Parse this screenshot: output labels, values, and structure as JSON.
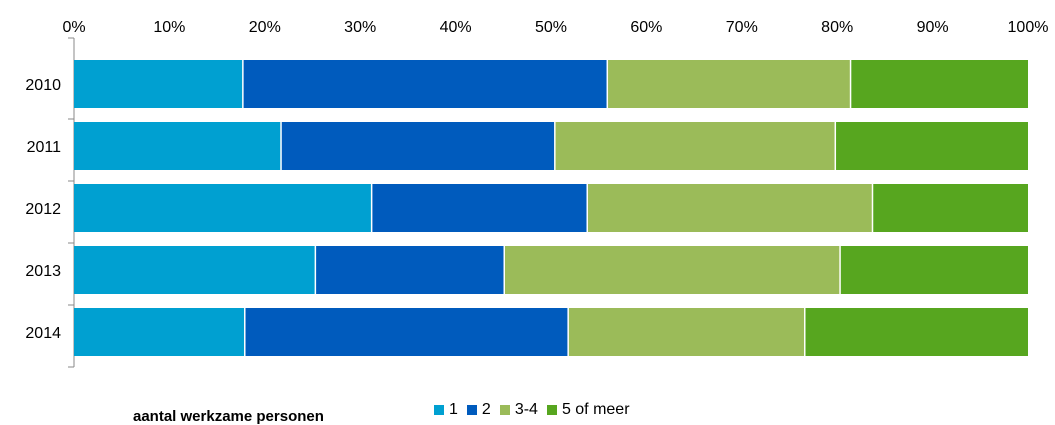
{
  "chart_data": {
    "type": "bar",
    "orientation": "horizontal",
    "stacked": "percent",
    "categories": [
      "2010",
      "2011",
      "2012",
      "2013",
      "2014"
    ],
    "x_ticks": [
      "0%",
      "10%",
      "20%",
      "30%",
      "40%",
      "50%",
      "60%",
      "70%",
      "80%",
      "90%",
      "100%"
    ],
    "xlim": [
      0,
      100
    ],
    "x_axis_position": "top",
    "grid": false,
    "legend_title": "aantal werkzame personen",
    "legend_position": "bottom",
    "series": [
      {
        "name": "1",
        "color": "#00a0d1",
        "values": [
          17.7,
          21.7,
          31.2,
          25.3,
          17.9
        ]
      },
      {
        "name": "2",
        "color": "#005bbd",
        "values": [
          38.2,
          28.7,
          22.6,
          19.8,
          33.9
        ]
      },
      {
        "name": "3-4",
        "color": "#9bbb59",
        "values": [
          25.5,
          29.4,
          29.9,
          35.2,
          24.8
        ]
      },
      {
        "name": "5 of meer",
        "color": "#57a61f",
        "values": [
          18.6,
          20.2,
          16.3,
          19.7,
          23.4
        ]
      }
    ]
  }
}
